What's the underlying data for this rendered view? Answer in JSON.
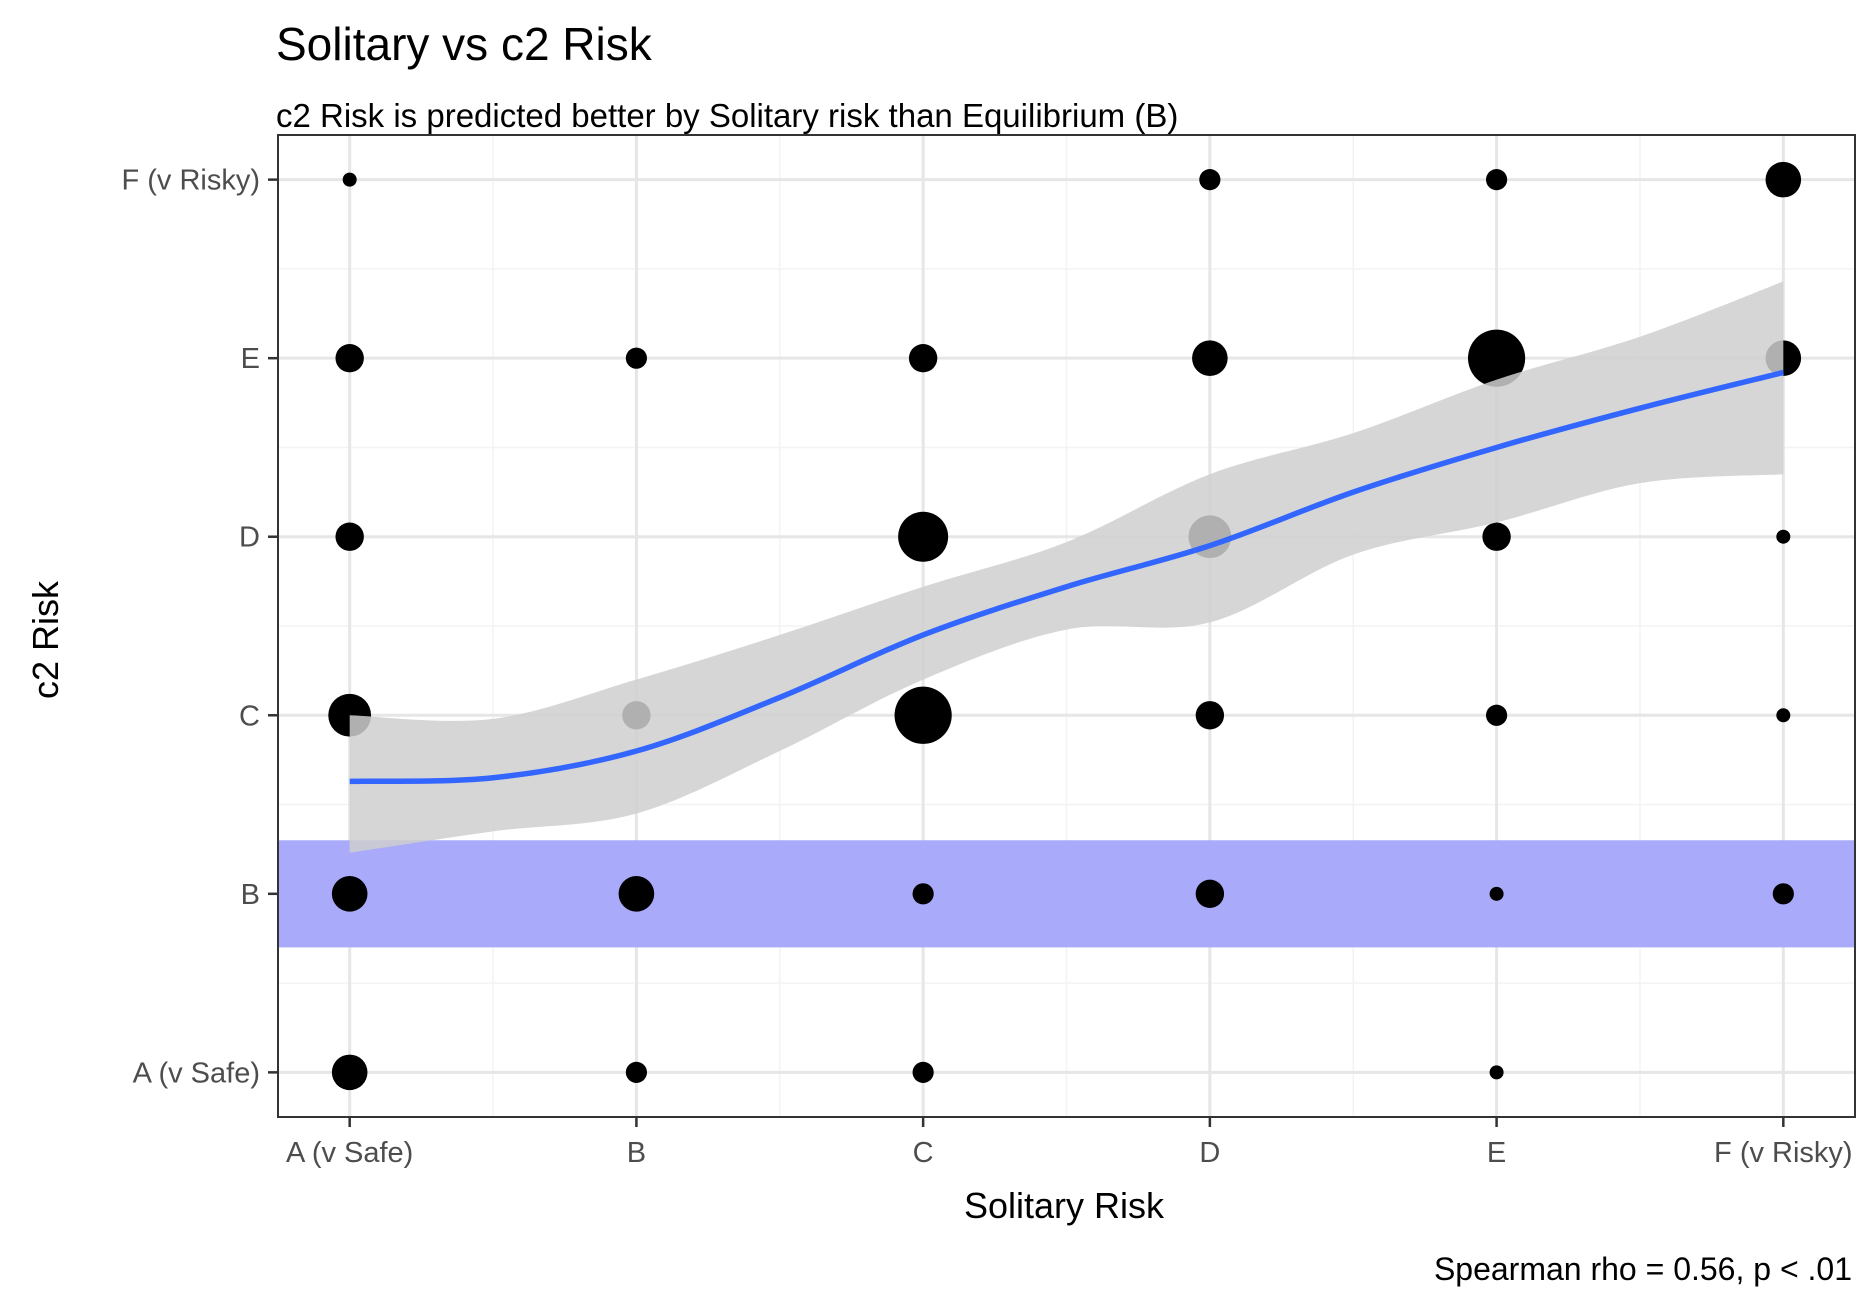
{
  "chart_data": {
    "type": "scatter",
    "title": "Solitary vs c2 Risk",
    "subtitle": "c2 Risk is predicted better by Solitary risk than Equilibrium (B)",
    "xlabel": "Solitary Risk",
    "ylabel": "c2 Risk",
    "caption": "Spearman rho = 0.56, p < .01",
    "x_categories": [
      "A (v Safe)",
      "B",
      "C",
      "D",
      "E",
      "F (v Risky)"
    ],
    "y_categories": [
      "A (v Safe)",
      "B",
      "C",
      "D",
      "E",
      "F (v Risky)"
    ],
    "points": [
      {
        "x": "A (v Safe)",
        "y": "F (v Risky)",
        "size": 1
      },
      {
        "x": "D",
        "y": "F (v Risky)",
        "size": 2
      },
      {
        "x": "E",
        "y": "F (v Risky)",
        "size": 2
      },
      {
        "x": "F (v Risky)",
        "y": "F (v Risky)",
        "size": 4
      },
      {
        "x": "A (v Safe)",
        "y": "E",
        "size": 3
      },
      {
        "x": "B",
        "y": "E",
        "size": 2
      },
      {
        "x": "C",
        "y": "E",
        "size": 3
      },
      {
        "x": "D",
        "y": "E",
        "size": 4
      },
      {
        "x": "E",
        "y": "E",
        "size": 7
      },
      {
        "x": "F (v Risky)",
        "y": "E",
        "size": 4
      },
      {
        "x": "A (v Safe)",
        "y": "D",
        "size": 3
      },
      {
        "x": "C",
        "y": "D",
        "size": 6
      },
      {
        "x": "D",
        "y": "D",
        "size": 5
      },
      {
        "x": "E",
        "y": "D",
        "size": 3
      },
      {
        "x": "F (v Risky)",
        "y": "D",
        "size": 1
      },
      {
        "x": "A (v Safe)",
        "y": "C",
        "size": 5
      },
      {
        "x": "B",
        "y": "C",
        "size": 3
      },
      {
        "x": "C",
        "y": "C",
        "size": 7
      },
      {
        "x": "D",
        "y": "C",
        "size": 3
      },
      {
        "x": "E",
        "y": "C",
        "size": 2
      },
      {
        "x": "F (v Risky)",
        "y": "C",
        "size": 1
      },
      {
        "x": "A (v Safe)",
        "y": "B",
        "size": 4
      },
      {
        "x": "B",
        "y": "B",
        "size": 4
      },
      {
        "x": "C",
        "y": "B",
        "size": 2
      },
      {
        "x": "D",
        "y": "B",
        "size": 3
      },
      {
        "x": "E",
        "y": "B",
        "size": 1
      },
      {
        "x": "F (v Risky)",
        "y": "B",
        "size": 2
      },
      {
        "x": "A (v Safe)",
        "y": "A (v Safe)",
        "size": 4
      },
      {
        "x": "B",
        "y": "A (v Safe)",
        "size": 2
      },
      {
        "x": "C",
        "y": "A (v Safe)",
        "size": 2
      },
      {
        "x": "E",
        "y": "A (v Safe)",
        "size": 1
      }
    ],
    "smooth": {
      "x": [
        1,
        1.5,
        2,
        2.5,
        3,
        3.5,
        4,
        4.5,
        5,
        5.5,
        6
      ],
      "y": [
        2.63,
        2.65,
        2.8,
        3.1,
        3.45,
        3.72,
        3.95,
        4.25,
        4.5,
        4.72,
        4.92
      ],
      "ci_low": [
        2.23,
        2.35,
        2.45,
        2.8,
        3.2,
        3.48,
        3.52,
        3.9,
        4.08,
        4.3,
        4.35
      ],
      "ci_high": [
        3.0,
        2.98,
        3.2,
        3.45,
        3.72,
        3.97,
        4.35,
        4.58,
        4.88,
        5.12,
        5.43
      ],
      "color": "#3366ff",
      "ci_color": "#cfcfcf"
    },
    "reference_band": {
      "category": "B",
      "ymin": 1.7,
      "ymax": 2.3,
      "color": "#aaaafa"
    },
    "point_color": "#000000",
    "grid": true,
    "xlim": [
      0.75,
      6.25
    ],
    "ylim": [
      0.75,
      6.25
    ]
  }
}
